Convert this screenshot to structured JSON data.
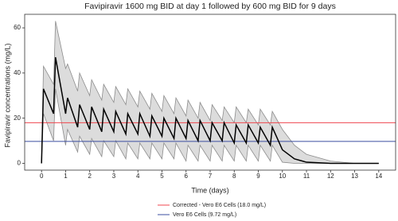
{
  "chart_data": {
    "type": "line",
    "title": "Favipiravir 1600 mg BID at day 1 followed by 600 mg BID for 9 days",
    "xlabel": "Time (days)",
    "ylabel": "Favipiravir concentrations (mg/L)",
    "xlim": [
      -0.7,
      14.7
    ],
    "ylim": [
      -3,
      66
    ],
    "xticks": [
      0,
      1,
      2,
      3,
      4,
      5,
      6,
      7,
      8,
      9,
      10,
      11,
      12,
      13,
      14
    ],
    "yticks": [
      0,
      20,
      40,
      60
    ],
    "grid": false,
    "legend": "bottom",
    "x": [
      0,
      0.08,
      0.5,
      0.58,
      1,
      1.08,
      1.5,
      1.58,
      2,
      2.08,
      2.5,
      2.58,
      3,
      3.08,
      3.5,
      3.58,
      4,
      4.08,
      4.5,
      4.58,
      5,
      5.08,
      5.5,
      5.58,
      6,
      6.08,
      6.5,
      6.58,
      7,
      7.08,
      7.5,
      7.58,
      8,
      8.08,
      8.5,
      8.58,
      9,
      9.08,
      9.5,
      9.58,
      10,
      10.5,
      11,
      12,
      13,
      14
    ],
    "median": {
      "color": "#000000",
      "values": [
        0,
        33,
        22,
        47,
        22,
        29,
        16,
        26,
        15,
        25,
        14,
        24,
        14,
        23,
        13,
        22,
        13,
        22,
        12,
        21,
        12,
        20,
        11,
        20,
        11,
        19,
        10,
        19,
        10,
        18,
        10,
        18,
        9,
        17,
        9,
        17,
        9,
        16,
        8,
        16,
        6,
        2,
        0.5,
        0,
        0,
        0
      ]
    },
    "band": {
      "fill": "#dcdcdc",
      "color": "#8c8c8c",
      "upper": [
        0,
        43,
        35,
        63,
        42,
        44,
        32,
        40,
        30,
        37,
        28,
        35,
        27,
        34,
        26,
        33,
        25,
        32,
        24,
        31,
        23,
        30,
        22,
        29,
        21,
        28,
        20,
        27,
        19,
        26,
        19,
        25,
        18,
        25,
        18,
        24,
        17,
        24,
        17,
        23,
        15,
        8,
        4,
        1,
        0,
        0
      ],
      "lower": [
        0,
        22,
        10,
        33,
        8,
        15,
        5,
        12,
        4,
        11,
        3,
        10,
        3,
        10,
        2,
        9,
        2,
        9,
        2,
        9,
        2,
        9,
        2,
        9,
        1,
        8,
        1,
        8,
        1,
        8,
        1,
        8,
        1,
        8,
        1,
        8,
        1,
        8,
        1,
        8,
        0.5,
        0,
        0,
        0,
        0,
        0
      ]
    },
    "hlines": [
      {
        "name": "Corrected - Vero E6 Cells (18.0 mg/L)",
        "value": 18,
        "color": "#f0474f"
      },
      {
        "name": "Vero E6 Cells (9.72 mg/L)",
        "value": 9.72,
        "color": "#3b4ea0"
      }
    ]
  }
}
